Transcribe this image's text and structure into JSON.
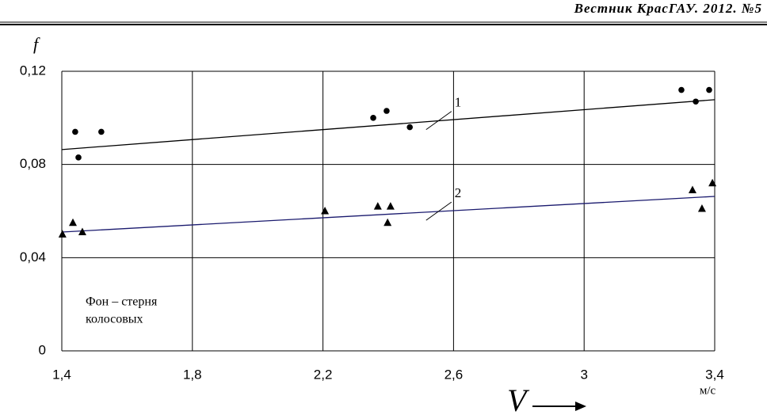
{
  "header": "Вестник КрасГАУ. 2012. №5",
  "chart_data": {
    "type": "scatter",
    "y_label": "f",
    "x_label": "V",
    "x_unit": "м/с",
    "annotation": [
      "Фон – стерня",
      "колосовых"
    ],
    "xlim": [
      1.4,
      3.4
    ],
    "ylim": [
      0,
      0.12
    ],
    "xticks": [
      {
        "value": 1.4,
        "label": "1,4"
      },
      {
        "value": 1.8,
        "label": "1,8"
      },
      {
        "value": 2.2,
        "label": "2,2"
      },
      {
        "value": 2.6,
        "label": "2,6"
      },
      3,
      {
        "value": 3.4,
        "label": "3,4"
      }
    ],
    "yticks": [
      0,
      {
        "value": 0.04,
        "label": "0,04"
      },
      {
        "value": 0.08,
        "label": "0,08"
      },
      {
        "value": 0.12,
        "label": "0,12"
      }
    ],
    "grid": true,
    "series": [
      {
        "name": "1",
        "color": "#000000",
        "marker": "circle",
        "x": [
          1.441,
          1.451,
          1.521,
          2.354,
          2.395,
          2.466,
          3.298,
          3.342,
          3.383
        ],
        "values": [
          0.094,
          0.083,
          0.094,
          0.1,
          0.103,
          0.096,
          0.112,
          0.107,
          0.112
        ],
        "trend_color": "#000000",
        "trend_x": [
          1.4,
          3.4
        ],
        "trend_values": [
          0.0864,
          0.1078
        ]
      },
      {
        "name": "2",
        "color": "#000000",
        "marker": "triangle",
        "x": [
          1.402,
          1.434,
          1.463,
          2.206,
          2.368,
          2.398,
          2.407,
          3.332,
          3.361,
          3.393
        ],
        "values": [
          0.05,
          0.055,
          0.051,
          0.06,
          0.062,
          0.055,
          0.062,
          0.069,
          0.061,
          0.072
        ],
        "trend_color": "#1a1a6e",
        "trend_x": [
          1.4,
          3.4
        ],
        "trend_values": [
          0.051,
          0.0663
        ]
      }
    ]
  }
}
